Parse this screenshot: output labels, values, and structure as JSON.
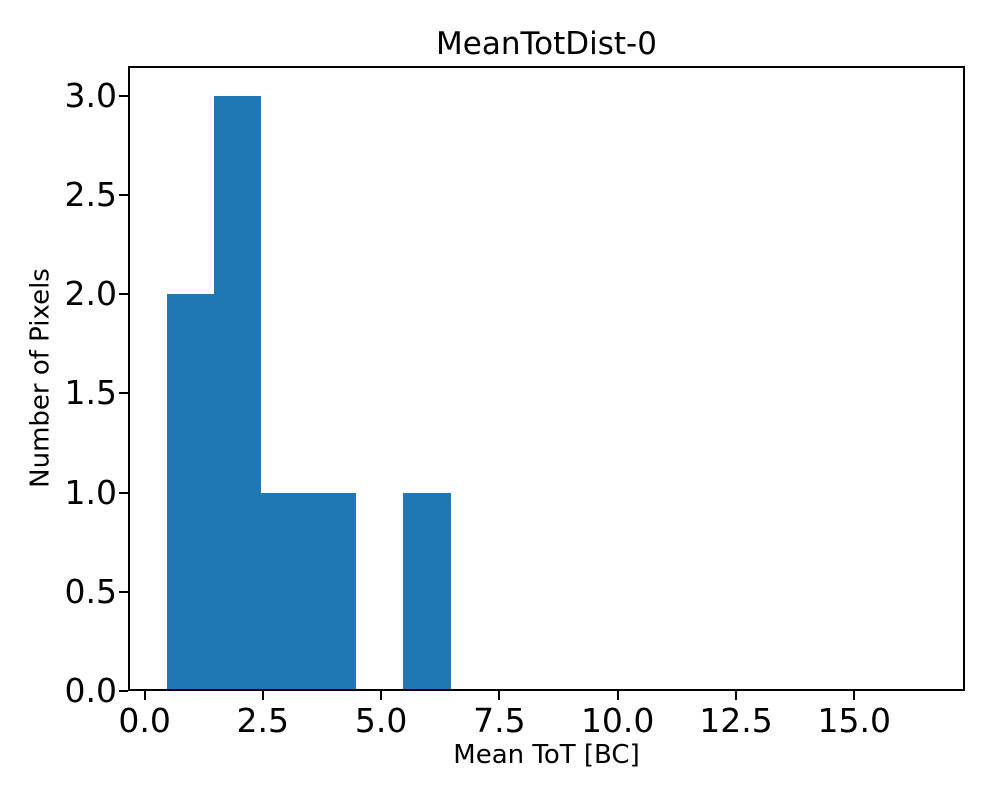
{
  "figure": {
    "title": "MeanTotDist-0",
    "x_axis": {
      "label": "Mean ToT [BC]",
      "tick_labels": [
        "0.0",
        "2.5",
        "5.0",
        "7.5",
        "10.0",
        "12.5",
        "15.0"
      ],
      "tick_values": [
        0,
        2.5,
        5,
        7.5,
        10,
        12.5,
        15
      ]
    },
    "y_axis": {
      "label": "Number of Pixels",
      "tick_labels": [
        "0.0",
        "0.5",
        "1.0",
        "1.5",
        "2.0",
        "2.5",
        "3.0"
      ],
      "tick_values": [
        0,
        0.5,
        1,
        1.5,
        2,
        2.5,
        3
      ]
    }
  },
  "chart_data": {
    "type": "bar",
    "subtype": "histogram",
    "title": "MeanTotDist-0",
    "xlabel": "Mean ToT [BC]",
    "ylabel": "Number of Pixels",
    "bin_edges": [
      0.47,
      1.47,
      2.47,
      3.47,
      4.47,
      5.47,
      6.47,
      7.47,
      8.47,
      9.47,
      10.47,
      11.47,
      12.47,
      13.47,
      14.47,
      15.47,
      16.47
    ],
    "counts": [
      2,
      3,
      1,
      1,
      0,
      1,
      0,
      0,
      0,
      0,
      0,
      0,
      0,
      0,
      0,
      0
    ],
    "total_entries": 8,
    "xlim": [
      -0.35,
      17.34
    ],
    "ylim": [
      0,
      3.15
    ],
    "bar_color": "#1f77b4",
    "spine_color": "#000000",
    "background_color": "#ffffff",
    "grid": false,
    "legend_position": "none"
  }
}
